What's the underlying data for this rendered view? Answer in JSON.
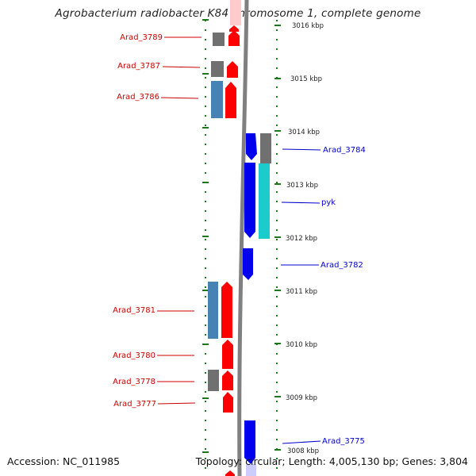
{
  "title": "Agrobacterium radiobacter K84 chromosome 1, complete genome",
  "footer": {
    "accession": "Accession: NC_011985",
    "topology": "Topology: circular; Length: 4,005,130 bp; Genes: 3,804"
  },
  "colors": {
    "cds_red": "#ff0000",
    "cds_blue": "#0000ee",
    "gene_gray": "#707070",
    "gene_steelblue": "#4682b4",
    "gene_cyan": "#1ccccc",
    "tick_green": "#1a7a1a",
    "label_red": "#cc0000",
    "label_blue": "#0000cc"
  },
  "kbp_labels": [
    "3016 kbp",
    "3015 kbp",
    "3014 kbp",
    "3013 kbp",
    "3012 kbp",
    "3011 kbp",
    "3010 kbp",
    "3009 kbp",
    "3008 kbp"
  ],
  "gene_labels": {
    "left": [
      "Arad_3789",
      "Arad_3787",
      "Arad_3786",
      "Arad_3781",
      "Arad_3780",
      "Arad_3778",
      "Arad_3777"
    ],
    "right": [
      "Arad_3784",
      "pyk",
      "Arad_3782",
      "Arad_3775"
    ]
  }
}
